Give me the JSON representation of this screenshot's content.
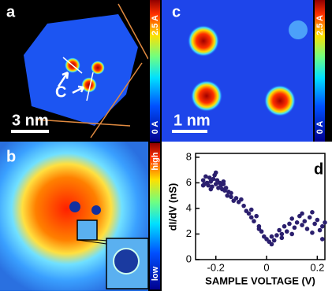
{
  "panels": {
    "a": {
      "label": "a",
      "annotation": "C",
      "scale_bar": "3 nm",
      "colorbar": {
        "max": "2.5 A",
        "min": "0 A"
      }
    },
    "b": {
      "label": "b",
      "colorbar": {
        "max": "high",
        "min": "low"
      }
    },
    "c": {
      "label": "c",
      "scale_bar": "1 nm",
      "colorbar": {
        "max": "2.5 A",
        "min": "0 A"
      }
    }
  },
  "chart_data": {
    "type": "scatter",
    "label": "d",
    "x_label": "SAMPLE VOLTAGE (V)",
    "y_label": "dI/dV (nS)",
    "color": "#2b1f6e",
    "x": [
      -0.25,
      -0.245,
      -0.24,
      -0.235,
      -0.23,
      -0.225,
      -0.22,
      -0.215,
      -0.21,
      -0.205,
      -0.2,
      -0.195,
      -0.19,
      -0.185,
      -0.18,
      -0.175,
      -0.17,
      -0.165,
      -0.16,
      -0.155,
      -0.15,
      -0.14,
      -0.13,
      -0.12,
      -0.11,
      -0.1,
      -0.09,
      -0.08,
      -0.07,
      -0.06,
      -0.05,
      -0.04,
      -0.03,
      -0.02,
      -0.01,
      0,
      0.01,
      0.02,
      0.03,
      0.04,
      0.05,
      0.06,
      0.07,
      0.08,
      0.09,
      0.1,
      0.11,
      0.12,
      0.13,
      0.14,
      0.15,
      0.16,
      0.17,
      0.18,
      0.19,
      0.2,
      0.21,
      0.22,
      0.23,
      -0.25,
      -0.22,
      -0.2,
      -0.17,
      -0.14,
      -0.06,
      -0.03,
      0.02,
      0.06,
      0.1,
      0.14,
      0.18,
      0.22
    ],
    "values": [
      6.2,
      5.9,
      6.5,
      6.0,
      5.8,
      6.4,
      6.1,
      5.7,
      6.3,
      6.6,
      5.9,
      6.2,
      5.6,
      6.0,
      5.8,
      5.5,
      5.9,
      5.4,
      5.6,
      5.0,
      5.3,
      4.9,
      4.6,
      4.8,
      4.5,
      4.7,
      4.2,
      3.8,
      3.6,
      3.3,
      3.0,
      3.4,
      2.6,
      2.2,
      1.8,
      1.6,
      1.4,
      1.8,
      1.5,
      1.9,
      2.3,
      2.0,
      2.6,
      2.2,
      2.8,
      3.2,
      2.5,
      2.9,
      3.4,
      2.7,
      3.0,
      2.4,
      3.3,
      2.1,
      2.8,
      3.1,
      2.3,
      2.6,
      2.9,
      5.8,
      5.5,
      6.8,
      6.1,
      5.2,
      3.9,
      2.4,
      1.2,
      1.7,
      2.0,
      3.6,
      3.7,
      1.6
    ],
    "xlim": [
      -0.28,
      0.23
    ],
    "ylim": [
      0,
      8.3
    ],
    "xticks": [
      -0.2,
      0,
      0.2
    ],
    "yticks": [
      0,
      2,
      4,
      6,
      8
    ]
  }
}
